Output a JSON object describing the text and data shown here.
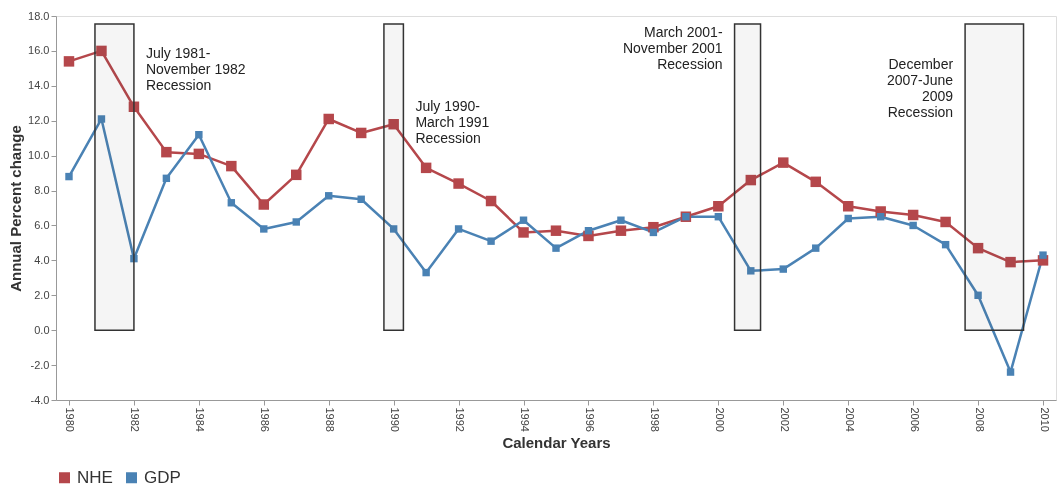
{
  "chart_data": {
    "type": "line",
    "xlabel": "Calendar Years",
    "ylabel": "Annual  Percent change",
    "x": [
      1980,
      1981,
      1982,
      1983,
      1984,
      1985,
      1986,
      1987,
      1988,
      1989,
      1990,
      1991,
      1992,
      1993,
      1994,
      1995,
      1996,
      1997,
      1998,
      1999,
      2000,
      2001,
      2002,
      2003,
      2004,
      2005,
      2006,
      2007,
      2008,
      2009,
      2010
    ],
    "series": [
      {
        "name": "NHE",
        "color": "#b5474b",
        "values": [
          15.4,
          16.0,
          12.8,
          10.2,
          10.1,
          9.4,
          7.2,
          8.9,
          12.1,
          11.3,
          11.8,
          9.3,
          8.4,
          7.4,
          5.6,
          5.7,
          5.4,
          5.7,
          5.9,
          6.5,
          7.1,
          8.6,
          9.6,
          8.5,
          7.1,
          6.8,
          6.6,
          6.2,
          4.7,
          3.9,
          4.0
        ]
      },
      {
        "name": "GDP",
        "color": "#4a82b4",
        "values": [
          8.8,
          12.1,
          4.1,
          8.7,
          11.2,
          7.3,
          5.8,
          6.2,
          7.7,
          7.5,
          5.8,
          3.3,
          5.8,
          5.1,
          6.3,
          4.7,
          5.7,
          6.3,
          5.6,
          6.5,
          6.5,
          3.4,
          3.5,
          4.7,
          6.4,
          6.5,
          6.0,
          4.9,
          2.0,
          -2.4,
          4.3
        ]
      }
    ],
    "xlim": [
      1979.6,
      2010.4
    ],
    "xticks": [
      1980,
      1982,
      1984,
      1986,
      1988,
      1990,
      1992,
      1994,
      1996,
      1998,
      2000,
      2002,
      2004,
      2006,
      2008,
      2010
    ],
    "ylim": [
      -4,
      18
    ],
    "yticks": [
      {
        "value": -4,
        "label": "-4.0"
      },
      {
        "value": -2,
        "label": "-2.0"
      },
      {
        "value": 0,
        "label": "0.0"
      },
      {
        "value": 2,
        "label": "2.0"
      },
      {
        "value": 4,
        "label": "4.0"
      },
      {
        "value": 6,
        "label": "6.0"
      },
      {
        "value": 8,
        "label": "8.0"
      },
      {
        "value": 10,
        "label": "10.0"
      },
      {
        "value": 12,
        "label": "12.0"
      },
      {
        "value": 14,
        "label": "14.0"
      },
      {
        "value": 16,
        "label": "16.0"
      },
      {
        "value": 18,
        "label": "18.0"
      }
    ],
    "bands": [
      {
        "axis": "x",
        "from": 1980.8,
        "to": 1982.0,
        "label": "July 1981-\nNovember 1982\nRecession",
        "color": "#333333"
      },
      {
        "axis": "x",
        "from": 1989.7,
        "to": 1990.3,
        "label": "July 1990-\nMarch 1991\nRecession",
        "color": "#333333"
      },
      {
        "axis": "x",
        "from": 2000.5,
        "to": 2001.3,
        "label": "March 2001-\nNovember 2001\nRecession",
        "color": "#333333"
      },
      {
        "axis": "x",
        "from": 2007.6,
        "to": 2009.4,
        "label": "December\n2007-June\n2009\nRecession",
        "color": "#333333"
      }
    ],
    "marker": "square",
    "line_style": "solid",
    "grid": false,
    "legend": "bottom"
  }
}
